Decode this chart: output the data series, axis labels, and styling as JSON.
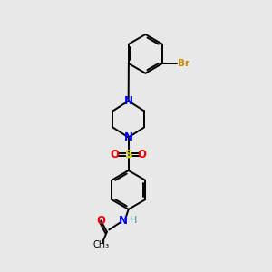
{
  "background_color": "#e8e8e8",
  "bond_color": "#000000",
  "N_color": "#0000ee",
  "O_color": "#ee0000",
  "S_color": "#cccc00",
  "Br_color": "#cc8800",
  "H_color": "#448888",
  "figsize": [
    3.0,
    3.0
  ],
  "dpi": 100,
  "xlim": [
    0,
    10
  ],
  "ylim": [
    0,
    10
  ]
}
